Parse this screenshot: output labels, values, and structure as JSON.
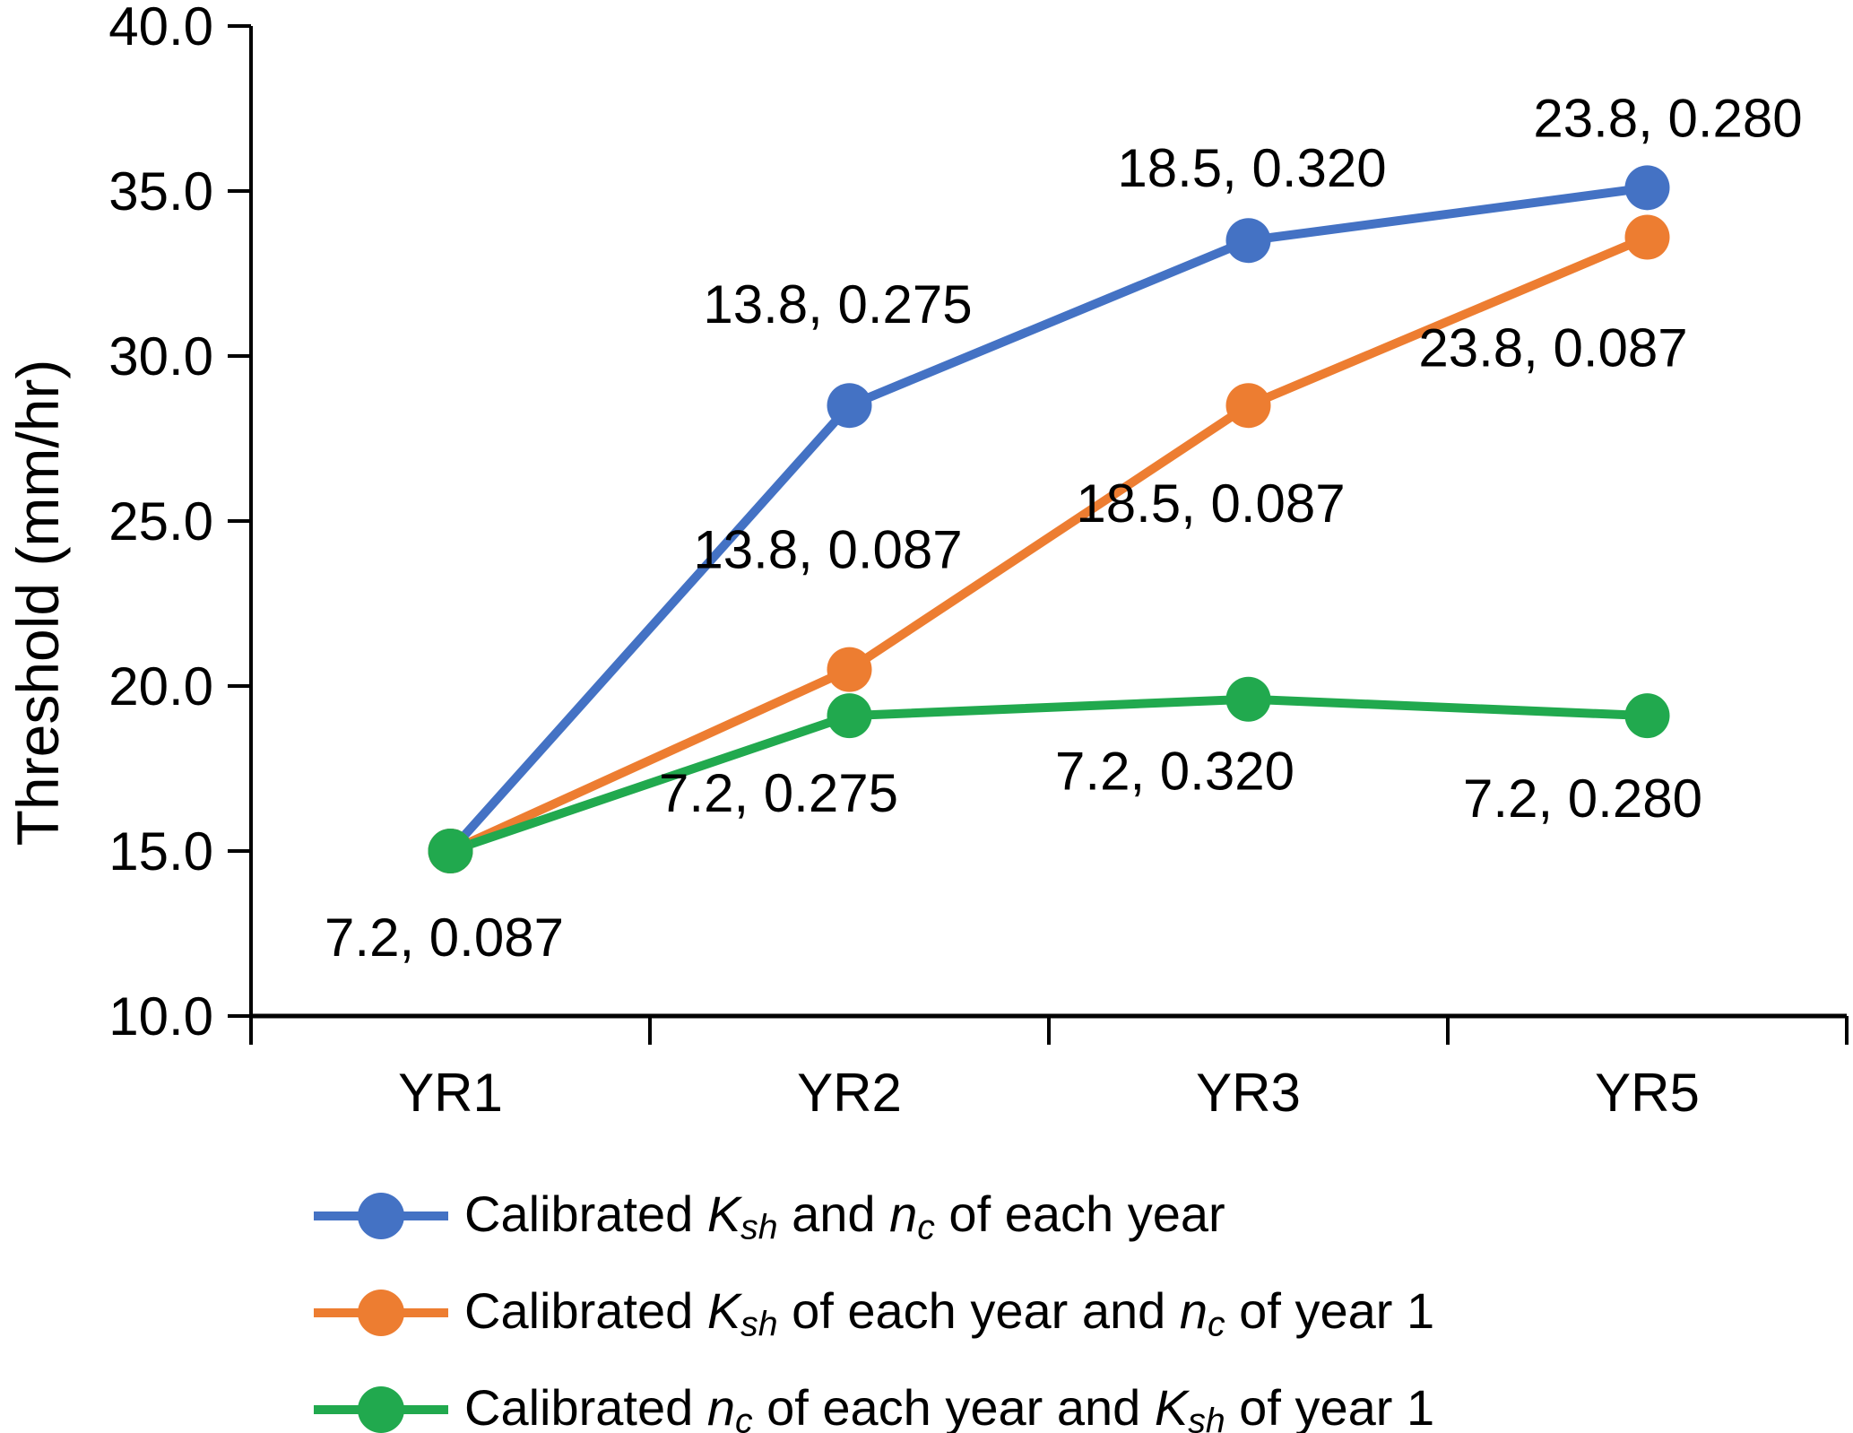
{
  "chart_data": {
    "type": "line",
    "title": "",
    "categories": [
      "YR1",
      "YR2",
      "YR3",
      "YR5"
    ],
    "xlabel": "",
    "ylabel": "Threshold (mm/hr)",
    "ylim": [
      10.0,
      40.0
    ],
    "ytick_step": 5.0,
    "yticks": [
      "10.0",
      "15.0",
      "20.0",
      "25.0",
      "30.0",
      "35.0",
      "40.0"
    ],
    "grid": false,
    "legend_position": "bottom-left",
    "series": [
      {
        "name": "Calibrated Ksh and nc of each year",
        "color": "#4472C4",
        "values": [
          15.0,
          28.5,
          33.5,
          35.1
        ],
        "point_labels": [
          "",
          "13.8, 0.275",
          "18.5, 0.320",
          "23.8, 0.280"
        ]
      },
      {
        "name": "Calibrated Ksh of each year and nc of year 1",
        "color": "#ED7D31",
        "values": [
          15.0,
          20.5,
          28.5,
          33.6
        ],
        "point_labels": [
          "",
          "13.8, 0.087",
          "18.5, 0.087",
          "23.8, 0.087"
        ]
      },
      {
        "name": "Calibrated nc of each year and Ksh of year 1",
        "color": "#21A94E",
        "values": [
          15.0,
          19.1,
          19.6,
          19.1
        ],
        "point_labels": [
          "7.2, 0.087",
          "7.2, 0.275",
          "7.2, 0.320",
          "7.2, 0.280"
        ]
      }
    ],
    "legend": [
      {
        "color": "#4472C4",
        "segments": [
          {
            "t": "Calibrated ",
            "s": "n"
          },
          {
            "t": "K",
            "s": "i"
          },
          {
            "t": "sh",
            "s": "isub"
          },
          {
            "t": " and ",
            "s": "n"
          },
          {
            "t": "n",
            "s": "i"
          },
          {
            "t": "c",
            "s": "isub"
          },
          {
            "t": " of each year",
            "s": "n"
          }
        ]
      },
      {
        "color": "#ED7D31",
        "segments": [
          {
            "t": "Calibrated ",
            "s": "n"
          },
          {
            "t": "K",
            "s": "i"
          },
          {
            "t": "sh",
            "s": "isub"
          },
          {
            "t": " of each year and ",
            "s": "n"
          },
          {
            "t": "n",
            "s": "i"
          },
          {
            "t": "c",
            "s": "isub"
          },
          {
            "t": " of year 1",
            "s": "n"
          }
        ]
      },
      {
        "color": "#21A94E",
        "segments": [
          {
            "t": "Calibrated ",
            "s": "n"
          },
          {
            "t": "n",
            "s": "i"
          },
          {
            "t": "c",
            "s": "isub"
          },
          {
            "t": " of each year and ",
            "s": "n"
          },
          {
            "t": "K",
            "s": "i"
          },
          {
            "t": "sh",
            "s": "isub"
          },
          {
            "t": " of year 1",
            "s": "n"
          }
        ]
      }
    ]
  }
}
